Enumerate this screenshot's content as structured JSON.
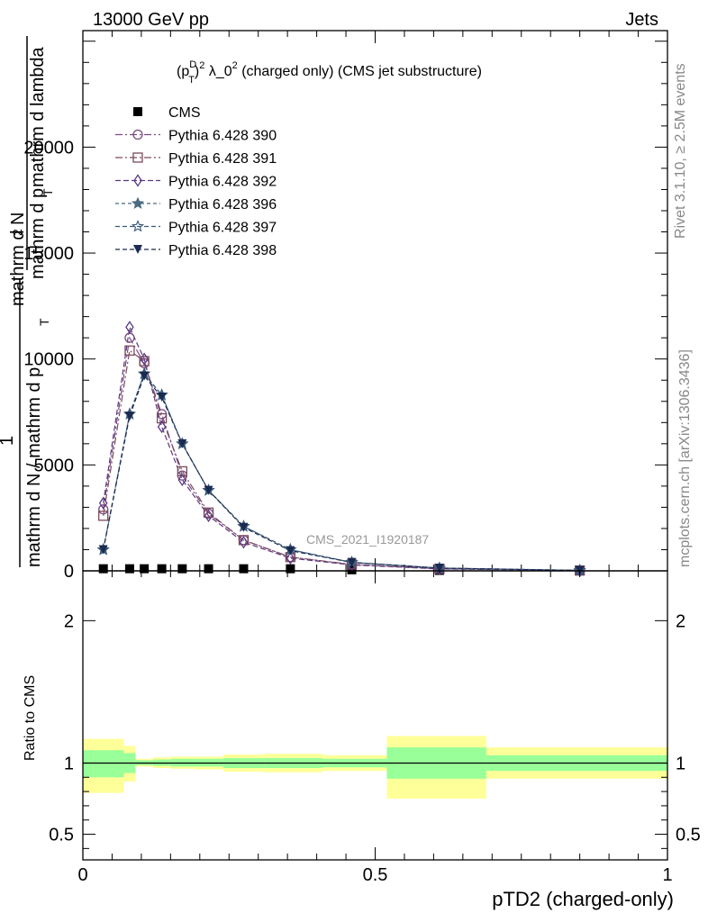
{
  "header": {
    "energy_label": "13000 GeV pp",
    "process_label": "Jets"
  },
  "side": {
    "rivet_label": "Rivet 3.1.10, ≥ 2.5M events",
    "mcplots_label": "mcplots.cern.ch [arXiv:1306.3436]"
  },
  "chart_data": [
    {
      "type": "line",
      "title": "(p_T^D)^2 λ_0^2 (charged only) (CMS jet substructure)",
      "title_parts": {
        "p": "(p",
        "sup_d": "D",
        "sub_t": "T",
        "close": ")",
        "sup_2a": "2",
        "mid": " λ_0",
        "sup_2b": "2",
        "tail": " (charged only) (CMS jet substructure)"
      },
      "watermark": "CMS_2021_I1920187",
      "ylabel": {
        "numerator": "mathrm d²N",
        "numerator_sup": "2",
        "numerator_main": "mathrm d N",
        "denominator": "mathrm d p_T mathrm d lambda",
        "prefix_num": "1",
        "prefix_den": "mathrm d N / mathrm d p_T"
      },
      "ylabel_lines": {
        "top_1": "mathrm d",
        "top_2": "2",
        "top_3": "N",
        "bot_1": "mathrm d p",
        "bot_2": "T",
        "bot_3": " mathrm d lambda",
        "frac_1": "1",
        "frac_den_1": "mathrm d N / mathrm d p",
        "frac_den_2": "T"
      },
      "xlim": [
        0,
        1
      ],
      "ylim": [
        0,
        25500
      ],
      "yticks": [
        0,
        5000,
        10000,
        15000,
        20000
      ],
      "ytick_labels": [
        "0",
        "5000",
        "10000",
        "15000",
        "20000"
      ],
      "legend_position": "top-left",
      "x": [
        0.035,
        0.08,
        0.105,
        0.135,
        0.17,
        0.215,
        0.275,
        0.355,
        0.46,
        0.61,
        0.85
      ],
      "series": [
        {
          "name": "CMS",
          "values": [
            100,
            100,
            100,
            100,
            100,
            100,
            100,
            100,
            50,
            20,
            5
          ],
          "color": "#000000",
          "marker": "square-filled"
        },
        {
          "name": "Pythia 6.428 390",
          "values": [
            2900,
            11000,
            9800,
            7400,
            4500,
            2700,
            1450,
            650,
            300,
            100,
            15
          ],
          "color": "#7b4a80",
          "marker": "circle-open"
        },
        {
          "name": "Pythia 6.428 391",
          "values": [
            2600,
            10400,
            9900,
            7200,
            4700,
            2750,
            1450,
            650,
            300,
            100,
            15
          ],
          "color": "#7b4a5a",
          "marker": "square-open"
        },
        {
          "name": "Pythia 6.428 392",
          "values": [
            3200,
            11500,
            10000,
            6800,
            4300,
            2600,
            1350,
            600,
            280,
            90,
            15
          ],
          "color": "#5a3a80",
          "marker": "diamond-open"
        },
        {
          "name": "Pythia 6.428 396",
          "values": [
            1000,
            7400,
            9300,
            8300,
            6000,
            3800,
            2100,
            1000,
            400,
            130,
            20
          ],
          "color": "#4a6a80",
          "marker": "star-filled"
        },
        {
          "name": "Pythia 6.428 397",
          "values": [
            1000,
            7400,
            9300,
            8300,
            6000,
            3800,
            2100,
            1000,
            400,
            130,
            20
          ],
          "color": "#3a5a7a",
          "marker": "star-open"
        },
        {
          "name": "Pythia 6.428 398",
          "values": [
            1000,
            7300,
            9200,
            8200,
            6000,
            3800,
            2050,
            950,
            400,
            130,
            20
          ],
          "color": "#1a2a50",
          "marker": "triangle-down-filled"
        }
      ]
    },
    {
      "type": "area",
      "ylabel": "Ratio to CMS",
      "xlabel": "pTD2 (charged-only)",
      "xlim": [
        0,
        1
      ],
      "ylim": [
        0.32,
        2.35
      ],
      "yticks": [
        0.5,
        1,
        2
      ],
      "ytick_labels": [
        "0.5",
        "1",
        "2"
      ],
      "xticks": [
        0,
        0.5,
        1
      ],
      "xtick_labels": [
        "0",
        "0.5",
        "1"
      ],
      "colors": {
        "inner": "#99ff99",
        "outer": "#ffff99"
      },
      "bands": [
        {
          "x0": 0.0,
          "x1": 0.07,
          "inner": [
            0.9,
            1.09
          ],
          "outer": [
            0.79,
            1.17
          ]
        },
        {
          "x0": 0.07,
          "x1": 0.09,
          "inner": [
            0.93,
            1.07
          ],
          "outer": [
            0.87,
            1.12
          ]
        },
        {
          "x0": 0.09,
          "x1": 0.12,
          "inner": [
            0.985,
            1.02
          ],
          "outer": [
            0.975,
            1.03
          ]
        },
        {
          "x0": 0.12,
          "x1": 0.15,
          "inner": [
            0.98,
            1.025
          ],
          "outer": [
            0.965,
            1.04
          ]
        },
        {
          "x0": 0.15,
          "x1": 0.19,
          "inner": [
            0.975,
            1.03
          ],
          "outer": [
            0.96,
            1.045
          ]
        },
        {
          "x0": 0.19,
          "x1": 0.24,
          "inner": [
            0.975,
            1.03
          ],
          "outer": [
            0.955,
            1.045
          ]
        },
        {
          "x0": 0.24,
          "x1": 0.31,
          "inner": [
            0.965,
            1.035
          ],
          "outer": [
            0.94,
            1.06
          ]
        },
        {
          "x0": 0.31,
          "x1": 0.41,
          "inner": [
            0.965,
            1.035
          ],
          "outer": [
            0.935,
            1.065
          ]
        },
        {
          "x0": 0.41,
          "x1": 0.52,
          "inner": [
            0.97,
            1.03
          ],
          "outer": [
            0.945,
            1.055
          ]
        },
        {
          "x0": 0.52,
          "x1": 0.69,
          "inner": [
            0.89,
            1.11
          ],
          "outer": [
            0.75,
            1.19
          ]
        },
        {
          "x0": 0.69,
          "x1": 1.0,
          "inner": [
            0.945,
            1.055
          ],
          "outer": [
            0.89,
            1.11
          ]
        }
      ]
    }
  ]
}
